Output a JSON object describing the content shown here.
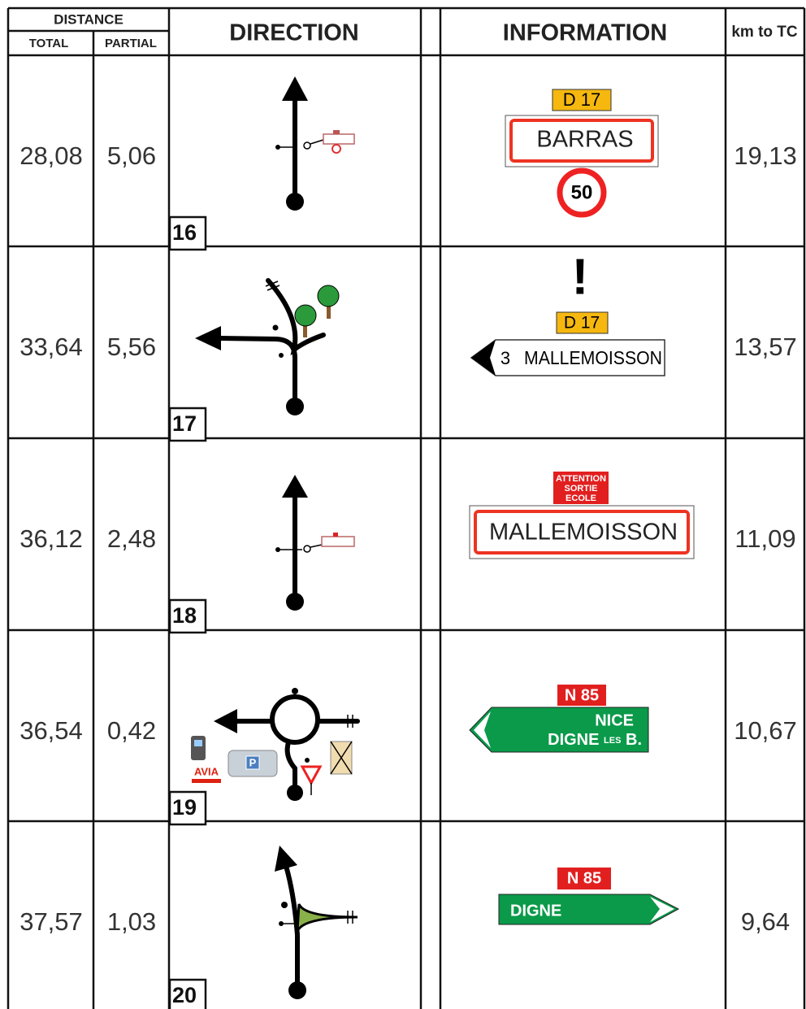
{
  "header": {
    "distance": "DISTANCE",
    "total": "TOTAL",
    "partial": "PARTIAL",
    "direction": "DIRECTION",
    "information": "INFORMATION",
    "km_to_tc": "km to TC"
  },
  "rows": [
    {
      "total": "28,08",
      "partial": "5,06",
      "step": "16",
      "info": [
        "D 17",
        "BARRAS",
        "50"
      ],
      "km_to_tc": "19,13"
    },
    {
      "total": "33,64",
      "partial": "5,56",
      "step": "17",
      "info": [
        "!",
        "D 17",
        "3",
        "MALLEMOISSON"
      ],
      "km_to_tc": "13,57"
    },
    {
      "total": "36,12",
      "partial": "2,48",
      "step": "18",
      "info": [
        "ATTENTION",
        "SORTIE",
        "ECOLE",
        "MALLEMOISSON"
      ],
      "km_to_tc": "11,09"
    },
    {
      "total": "36,54",
      "partial": "0,42",
      "step": "19",
      "icons": [
        "AVIA",
        "P"
      ],
      "info": [
        "N 85",
        "NICE",
        "DIGNE",
        "LES",
        "B."
      ],
      "km_to_tc": "10,67"
    },
    {
      "total": "37,57",
      "partial": "1,03",
      "step": "20",
      "info": [
        "N 85",
        "DIGNE"
      ],
      "km_to_tc": "9,64"
    }
  ]
}
